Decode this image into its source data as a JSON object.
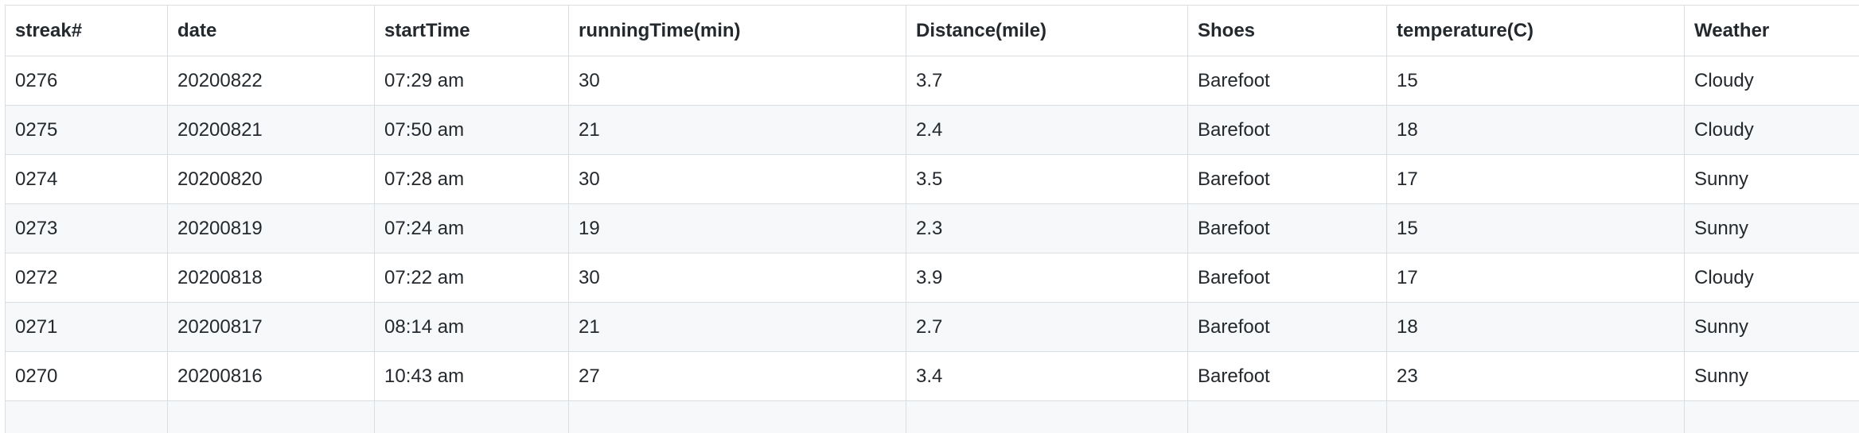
{
  "table": {
    "headers": [
      "streak#",
      "date",
      "startTime",
      "runningTime(min)",
      "Distance(mile)",
      "Shoes",
      "temperature(C)",
      "Weather"
    ],
    "rows": [
      [
        "0276",
        "20200822",
        "07:29 am",
        "30",
        "3.7",
        "Barefoot",
        "15",
        "Cloudy"
      ],
      [
        "0275",
        "20200821",
        "07:50 am",
        "21",
        "2.4",
        "Barefoot",
        "18",
        "Cloudy"
      ],
      [
        "0274",
        "20200820",
        "07:28 am",
        "30",
        "3.5",
        "Barefoot",
        "17",
        "Sunny"
      ],
      [
        "0273",
        "20200819",
        "07:24 am",
        "19",
        "2.3",
        "Barefoot",
        "15",
        "Sunny"
      ],
      [
        "0272",
        "20200818",
        "07:22 am",
        "30",
        "3.9",
        "Barefoot",
        "17",
        "Cloudy"
      ],
      [
        "0271",
        "20200817",
        "08:14 am",
        "21",
        "2.7",
        "Barefoot",
        "18",
        "Sunny"
      ],
      [
        "0270",
        "20200816",
        "10:43 am",
        "27",
        "3.4",
        "Barefoot",
        "23",
        "Sunny"
      ]
    ]
  }
}
